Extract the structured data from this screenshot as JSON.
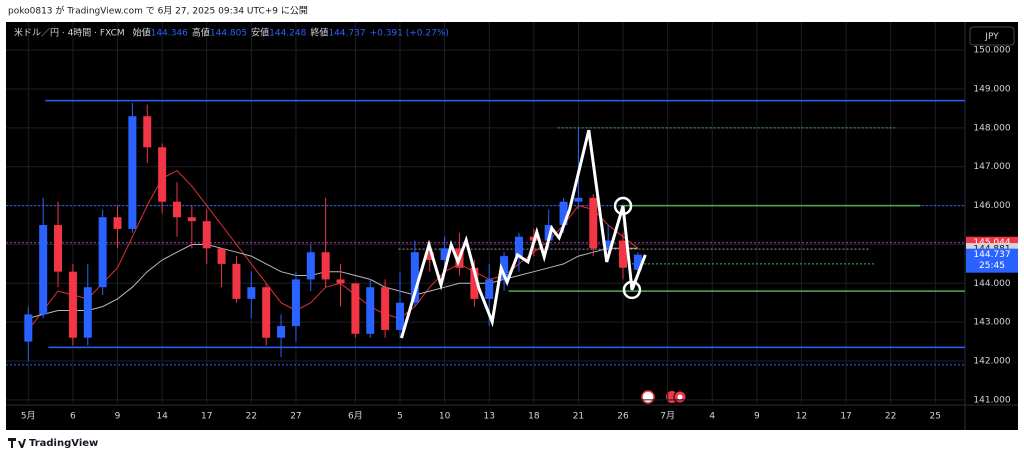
{
  "page_header": "poko0813 が TradingView.com で 6月 27, 2025 09:34 UTC+9 に公開",
  "footer_brand": "TradingView",
  "chart_data": {
    "type": "candlestick",
    "symbol": "米ドル／円 · 4時間 · FXCM",
    "ohlc_legend": [
      {
        "label": "始値",
        "value": "144.346"
      },
      {
        "label": "高値",
        "value": "144.805"
      },
      {
        "label": "安値",
        "value": "144.248"
      },
      {
        "label": "終値",
        "value": "144.737"
      }
    ],
    "change": "+0.391 (+0.27%)",
    "currency": "JPY",
    "up_color": "#2962ff",
    "down_color": "#f23645",
    "x": [
      0,
      1,
      2,
      3,
      4,
      5,
      6,
      7,
      8,
      9,
      10,
      11,
      12,
      13,
      14,
      15,
      16,
      17,
      18,
      19,
      20,
      21,
      22,
      23,
      24,
      25,
      26,
      27,
      28,
      29,
      30,
      31,
      32,
      33,
      34,
      35,
      36,
      37,
      38,
      39,
      40,
      41
    ],
    "open": [
      142.5,
      143.2,
      145.5,
      144.3,
      142.6,
      143.9,
      145.7,
      145.4,
      148.3,
      147.5,
      146.1,
      145.7,
      145.6,
      144.9,
      144.5,
      143.6,
      143.9,
      142.6,
      142.9,
      144.1,
      144.8,
      144.1,
      144.0,
      142.7,
      143.9,
      142.8,
      143.5,
      144.8,
      144.6,
      144.9,
      144.4,
      143.6,
      144.1,
      144.7,
      145.2,
      145.1,
      145.5,
      146.1,
      146.2,
      144.9,
      145.1,
      144.346
    ],
    "high": [
      143.4,
      146.2,
      146.1,
      144.5,
      144.5,
      145.9,
      146.0,
      148.64,
      148.6,
      147.6,
      146.6,
      146.0,
      145.9,
      144.9,
      144.7,
      144.3,
      144.0,
      143.2,
      144.3,
      145.0,
      146.2,
      144.5,
      144.0,
      144.1,
      144.1,
      144.3,
      145.1,
      145.0,
      145.2,
      145.3,
      144.6,
      144.5,
      144.8,
      145.3,
      145.4,
      145.9,
      146.2,
      148.0,
      146.3,
      145.5,
      145.3,
      144.805
    ],
    "low": [
      142.0,
      143.1,
      143.9,
      142.4,
      142.4,
      143.7,
      144.9,
      145.3,
      147.1,
      145.8,
      145.2,
      144.9,
      144.5,
      143.9,
      143.5,
      143.1,
      142.4,
      142.1,
      142.5,
      143.8,
      143.9,
      143.4,
      142.6,
      142.6,
      142.6,
      142.6,
      143.4,
      144.3,
      144.3,
      144.2,
      143.4,
      142.9,
      143.8,
      144.3,
      144.7,
      144.9,
      145.3,
      145.9,
      144.7,
      144.6,
      144.1,
      144.248
    ],
    "close": [
      143.2,
      145.5,
      144.3,
      142.6,
      143.9,
      145.7,
      145.4,
      148.3,
      147.5,
      146.1,
      145.7,
      145.6,
      144.9,
      144.5,
      143.6,
      143.9,
      142.6,
      142.9,
      144.1,
      144.8,
      144.1,
      144.0,
      142.7,
      143.9,
      142.8,
      143.5,
      144.8,
      144.6,
      144.9,
      144.4,
      143.6,
      144.1,
      144.7,
      145.2,
      145.1,
      145.5,
      146.1,
      146.2,
      144.9,
      145.1,
      144.4,
      144.737
    ],
    "moving_averages": [
      {
        "color": "#e0302f",
        "values": [
          142.8,
          143.3,
          143.8,
          143.7,
          143.6,
          144.0,
          144.4,
          145.2,
          146.0,
          146.7,
          146.9,
          146.5,
          146.0,
          145.5,
          145.0,
          144.5,
          144.0,
          143.5,
          143.3,
          143.5,
          143.9,
          144.0,
          143.7,
          143.4,
          143.2,
          143.1,
          143.4,
          143.9,
          144.3,
          144.5,
          144.3,
          144.1,
          144.2,
          144.5,
          144.8,
          145.1,
          145.5,
          146.0,
          145.9,
          145.5,
          145.2,
          144.9
        ]
      },
      {
        "color": "#b8b8b8",
        "values": [
          143.1,
          143.2,
          143.3,
          143.3,
          143.3,
          143.4,
          143.6,
          143.9,
          144.3,
          144.6,
          144.8,
          145.0,
          145.0,
          144.9,
          144.8,
          144.7,
          144.5,
          144.3,
          144.2,
          144.2,
          144.3,
          144.3,
          144.2,
          144.1,
          143.9,
          143.8,
          143.7,
          143.8,
          143.9,
          144.0,
          144.0,
          144.0,
          144.1,
          144.2,
          144.3,
          144.4,
          144.5,
          144.7,
          144.8,
          144.9,
          144.9,
          144.9
        ]
      }
    ],
    "lines": [
      {
        "price": 148.7,
        "from": 1.15,
        "to": 63,
        "color": "#2962ff",
        "style": "solid"
      },
      {
        "price": 142.35,
        "from": 1.35,
        "to": 63,
        "color": "#2962ff",
        "style": "solid"
      },
      {
        "price": 146.0,
        "from": -1.5,
        "to": 63,
        "color": "#2962ff",
        "style": "dotted"
      },
      {
        "price": 141.9,
        "from": -1.5,
        "to": 63,
        "color": "#2962ff",
        "style": "dotted"
      },
      {
        "price": 145.044,
        "from": -1.5,
        "to": 63,
        "color": "#c040c0",
        "style": "dotted"
      },
      {
        "price": 148.0,
        "from": 35.6,
        "to": 58.3,
        "color": "#4caf50",
        "style": "dotted"
      },
      {
        "price": 146.0,
        "from": 39.8,
        "to": 60.0,
        "color": "#4caf50",
        "style": "solid"
      },
      {
        "price": 143.8,
        "from": 32.3,
        "to": 63,
        "color": "#4caf50",
        "style": "solid"
      },
      {
        "price": 144.881,
        "from": 24.9,
        "to": 56.6,
        "color": "#9a9a9a",
        "style": "dotted"
      },
      {
        "price": 144.5,
        "from": 39.8,
        "to": 56.9,
        "color": "#4caf50",
        "style": "dotted"
      }
    ],
    "drawing": {
      "color": "#ffffff",
      "x": [
        25.1,
        26.95,
        27.76,
        28.44,
        28.9,
        29.45,
        30.3,
        31.2,
        31.8,
        32.2,
        32.9,
        33.6,
        34.2,
        34.7,
        35.2,
        35.7,
        36.4,
        37.7,
        38.9,
        40.0,
        40.6,
        41.5
      ],
      "y": [
        142.59,
        144.99,
        143.96,
        144.99,
        144.55,
        145.11,
        143.88,
        143.01,
        144.39,
        144.03,
        144.73,
        144.55,
        145.32,
        144.68,
        145.42,
        145.17,
        145.89,
        147.94,
        144.55,
        145.99,
        143.83,
        144.73
      ]
    },
    "circles": [
      {
        "x": 40.0,
        "y": 145.99
      },
      {
        "x": 40.6,
        "y": 143.83
      }
    ],
    "price_labels": [
      {
        "value": 145.044,
        "label": "145.044",
        "color": "#f23645"
      },
      {
        "value": 144.881,
        "label": "144.881",
        "color": "#d1d4dc"
      },
      {
        "value": 144.737,
        "label": "144.737",
        "sub": "25:45",
        "color": "#2962ff"
      }
    ],
    "xlim": [
      -1.5,
      63
    ],
    "xticks": [
      {
        "value": 0,
        "label": "5月"
      },
      {
        "value": 3,
        "label": "6"
      },
      {
        "value": 6,
        "label": "9"
      },
      {
        "value": 9,
        "label": "14"
      },
      {
        "value": 12,
        "label": "17"
      },
      {
        "value": 15,
        "label": "22"
      },
      {
        "value": 18,
        "label": "27"
      },
      {
        "value": 22,
        "label": "6月"
      },
      {
        "value": 25,
        "label": "5"
      },
      {
        "value": 28,
        "label": "10"
      },
      {
        "value": 31,
        "label": "13"
      },
      {
        "value": 34,
        "label": "18"
      },
      {
        "value": 37,
        "label": "21"
      },
      {
        "value": 40,
        "label": "26"
      },
      {
        "value": 43,
        "label": "7月"
      },
      {
        "value": 46,
        "label": "4"
      },
      {
        "value": 49,
        "label": "9"
      },
      {
        "value": 52,
        "label": "12"
      },
      {
        "value": 55,
        "label": "17"
      },
      {
        "value": 58,
        "label": "22"
      },
      {
        "value": 61,
        "label": "25"
      }
    ],
    "ylim": [
      140.92,
      150.57
    ],
    "yticks": [
      {
        "value": 141,
        "label": "141.000"
      },
      {
        "value": 142,
        "label": "142.000"
      },
      {
        "value": 143,
        "label": "143.000"
      },
      {
        "value": 144,
        "label": "144.000"
      },
      {
        "value": 145,
        "label": "145.000"
      },
      {
        "value": 146,
        "label": "146.000"
      },
      {
        "value": 147,
        "label": "147.000"
      },
      {
        "value": 148,
        "label": "148.000"
      },
      {
        "value": 149,
        "label": "149.000"
      },
      {
        "value": 150,
        "label": "150.000"
      }
    ],
    "grid": true
  }
}
